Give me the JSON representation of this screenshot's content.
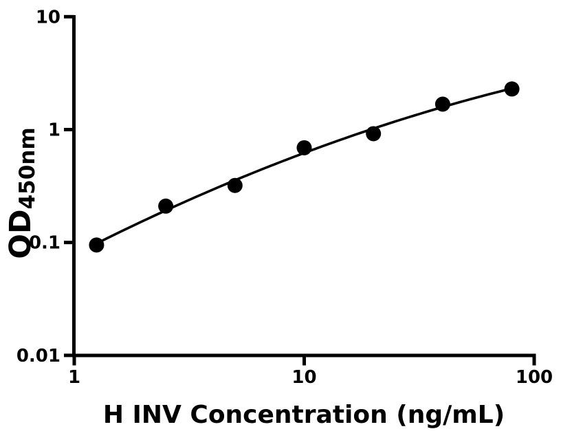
{
  "chart_data": {
    "type": "scatter",
    "title": "",
    "xlabel": "H INV Concentration (ng/mL)",
    "ylabel": "OD",
    "ylabel_subscript": "450nm",
    "x_scale": "log",
    "y_scale": "log",
    "xlim": [
      1,
      100
    ],
    "ylim": [
      0.01,
      10
    ],
    "x": [
      1.25,
      2.5,
      5,
      10,
      20,
      40,
      80
    ],
    "y": [
      0.095,
      0.21,
      0.32,
      0.69,
      0.92,
      1.68,
      2.29
    ],
    "x_ticks": [
      {
        "value": 1,
        "label": "1"
      },
      {
        "value": 10,
        "label": "10"
      },
      {
        "value": 100,
        "label": "100"
      }
    ],
    "y_ticks": [
      {
        "value": 10,
        "label": "10"
      },
      {
        "value": 1,
        "label": "1"
      },
      {
        "value": 0.1,
        "label": "0.1"
      },
      {
        "value": 0.01,
        "label": "0.01"
      }
    ],
    "grid": false,
    "legend": null,
    "marker": {
      "shape": "circle",
      "color": "#000000"
    },
    "line": {
      "style": "solid",
      "color": "#000000",
      "fit": "smooth"
    },
    "background_color": "#ffffff"
  }
}
